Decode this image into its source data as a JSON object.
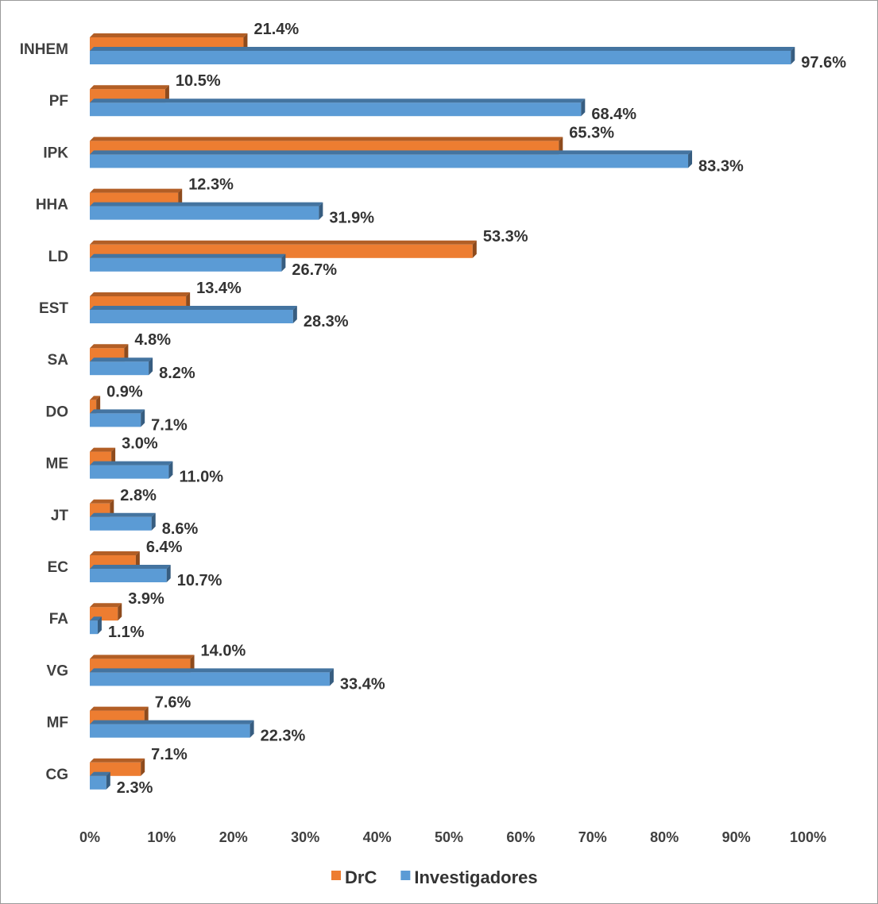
{
  "chart_data": {
    "type": "bar",
    "orientation": "horizontal",
    "categories": [
      "INHEM",
      "PF",
      "IPK",
      "HHA",
      "LD",
      "EST",
      "SA",
      "DO",
      "ME",
      "JT",
      "EC",
      "FA",
      "VG",
      "MF",
      "CG"
    ],
    "series": [
      {
        "name": "DrC",
        "color": "#ED7D31",
        "values": [
          21.4,
          10.5,
          65.3,
          12.3,
          53.3,
          13.4,
          4.8,
          0.9,
          3.0,
          2.8,
          6.4,
          3.9,
          14.0,
          7.6,
          7.1
        ],
        "labels": [
          "21.4%",
          "10.5%",
          "65.3%",
          "12.3%",
          "53.3%",
          "13.4%",
          "4.8%",
          "0.9%",
          "3.0%",
          "2.8%",
          "6.4%",
          "3.9%",
          "14.0%",
          "7.6%",
          "7.1%"
        ]
      },
      {
        "name": "Investigadores",
        "color": "#5B9BD5",
        "values": [
          97.6,
          68.4,
          83.3,
          31.9,
          26.7,
          28.3,
          8.2,
          7.1,
          11.0,
          8.6,
          10.7,
          1.1,
          33.4,
          22.3,
          2.3
        ],
        "labels": [
          "97.6%",
          "68.4%",
          "83.3%",
          "31.9%",
          "26.7%",
          "28.3%",
          "8.2%",
          "7.1%",
          "11.0%",
          "8.6%",
          "10.7%",
          "1.1%",
          "33.4%",
          "22.3%",
          "2.3%"
        ]
      }
    ],
    "xlim": [
      0,
      100
    ],
    "x_ticks": [
      "0%",
      "10%",
      "20%",
      "30%",
      "40%",
      "50%",
      "60%",
      "70%",
      "80%",
      "90%",
      "100%"
    ],
    "title": "",
    "xlabel": "",
    "ylabel": "",
    "grid": false,
    "legend_position": "bottom"
  }
}
